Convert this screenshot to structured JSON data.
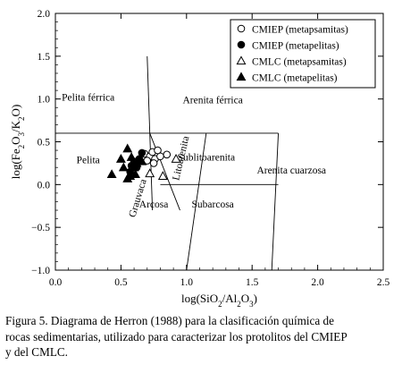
{
  "chart_data": {
    "type": "scatter",
    "title": "",
    "xlabel": "log(SiO2/Al2O3)",
    "ylabel": "log(Fe2O3/K2O)",
    "xlim": [
      0.0,
      2.5
    ],
    "ylim": [
      -1.0,
      2.0
    ],
    "xticks": [
      0.0,
      0.5,
      1.0,
      1.5,
      2.0,
      2.5
    ],
    "xtick_labels": [
      "0.0",
      "0.5",
      "1.0",
      "1.5",
      "2.0",
      "2.5"
    ],
    "yticks": [
      -1.0,
      -0.5,
      0.0,
      0.5,
      1.0,
      1.5,
      2.0
    ],
    "ytick_labels": [
      "−1.0",
      "−0.5",
      "0.0",
      "0.5",
      "1.0",
      "1.5",
      "2.0"
    ],
    "grid": false,
    "legend_position": "top-right",
    "boundaries": [
      [
        [
          0.0,
          0.6
        ],
        [
          1.7,
          0.6
        ]
      ],
      [
        [
          0.7,
          1.5
        ],
        [
          0.72,
          0.6
        ]
      ],
      [
        [
          0.72,
          0.6
        ],
        [
          0.74,
          -0.3
        ]
      ],
      [
        [
          0.72,
          0.6
        ],
        [
          0.95,
          -0.3
        ]
      ],
      [
        [
          0.8,
          0.0
        ],
        [
          1.7,
          0.0
        ]
      ],
      [
        [
          1.15,
          0.6
        ],
        [
          1.0,
          -1.0
        ]
      ],
      [
        [
          1.7,
          0.6
        ],
        [
          1.65,
          -1.0
        ]
      ]
    ],
    "regions": [
      {
        "label": "Pelita férrica",
        "x": 0.25,
        "y": 0.98,
        "rotate": 0
      },
      {
        "label": "Arenita férrica",
        "x": 1.2,
        "y": 0.95,
        "rotate": 0
      },
      {
        "label": "Pelita",
        "x": 0.25,
        "y": 0.25,
        "rotate": 0
      },
      {
        "label": "Sublitoarenita",
        "x": 1.15,
        "y": 0.28,
        "rotate": 0
      },
      {
        "label": "Arenita cuarzosa",
        "x": 1.8,
        "y": 0.13,
        "rotate": 0
      },
      {
        "label": "Arcosa",
        "x": 0.75,
        "y": -0.27,
        "rotate": 0
      },
      {
        "label": "Subarcosa",
        "x": 1.2,
        "y": -0.27,
        "rotate": 0
      },
      {
        "label": "Grauvaca",
        "x": 0.65,
        "y": -0.17,
        "rotate": -73
      },
      {
        "label": "Litoarenita",
        "x": 0.98,
        "y": 0.3,
        "rotate": -77
      }
    ],
    "series": [
      {
        "name": "CMIEP (metapsamitas)",
        "marker": "circle-open",
        "points": [
          [
            0.68,
            0.36
          ],
          [
            0.72,
            0.33
          ],
          [
            0.74,
            0.38
          ],
          [
            0.76,
            0.3
          ],
          [
            0.75,
            0.25
          ],
          [
            0.8,
            0.33
          ],
          [
            0.85,
            0.35
          ],
          [
            0.78,
            0.4
          ],
          [
            0.7,
            0.28
          ]
        ]
      },
      {
        "name": "CMIEP (metapelitas)",
        "marker": "circle-filled",
        "points": [
          [
            0.66,
            0.37
          ],
          [
            0.6,
            0.27
          ],
          [
            0.62,
            0.2
          ],
          [
            0.58,
            0.22
          ],
          [
            0.64,
            0.3
          ],
          [
            0.57,
            0.15
          ]
        ]
      },
      {
        "name": "CMLC (metapsamitas)",
        "marker": "triangle-open",
        "points": [
          [
            0.72,
            0.13
          ],
          [
            0.82,
            0.1
          ],
          [
            0.92,
            0.3
          ]
        ]
      },
      {
        "name": "CMLC (metapelitas)",
        "marker": "triangle-filled",
        "points": [
          [
            0.55,
            0.42
          ],
          [
            0.5,
            0.3
          ],
          [
            0.58,
            0.32
          ],
          [
            0.52,
            0.2
          ],
          [
            0.6,
            0.2
          ],
          [
            0.57,
            0.1
          ],
          [
            0.43,
            0.12
          ],
          [
            0.62,
            0.25
          ],
          [
            0.55,
            0.07
          ],
          [
            0.61,
            0.12
          ],
          [
            0.66,
            0.27
          ]
        ]
      }
    ]
  },
  "caption": {
    "lines": [
      "Figura 5. Diagrama de Herron (1988) para la clasificación química de",
      "rocas sedimentarias, utilizado para caracterizar los protolitos del CMIEP",
      "y del CMLC."
    ]
  }
}
